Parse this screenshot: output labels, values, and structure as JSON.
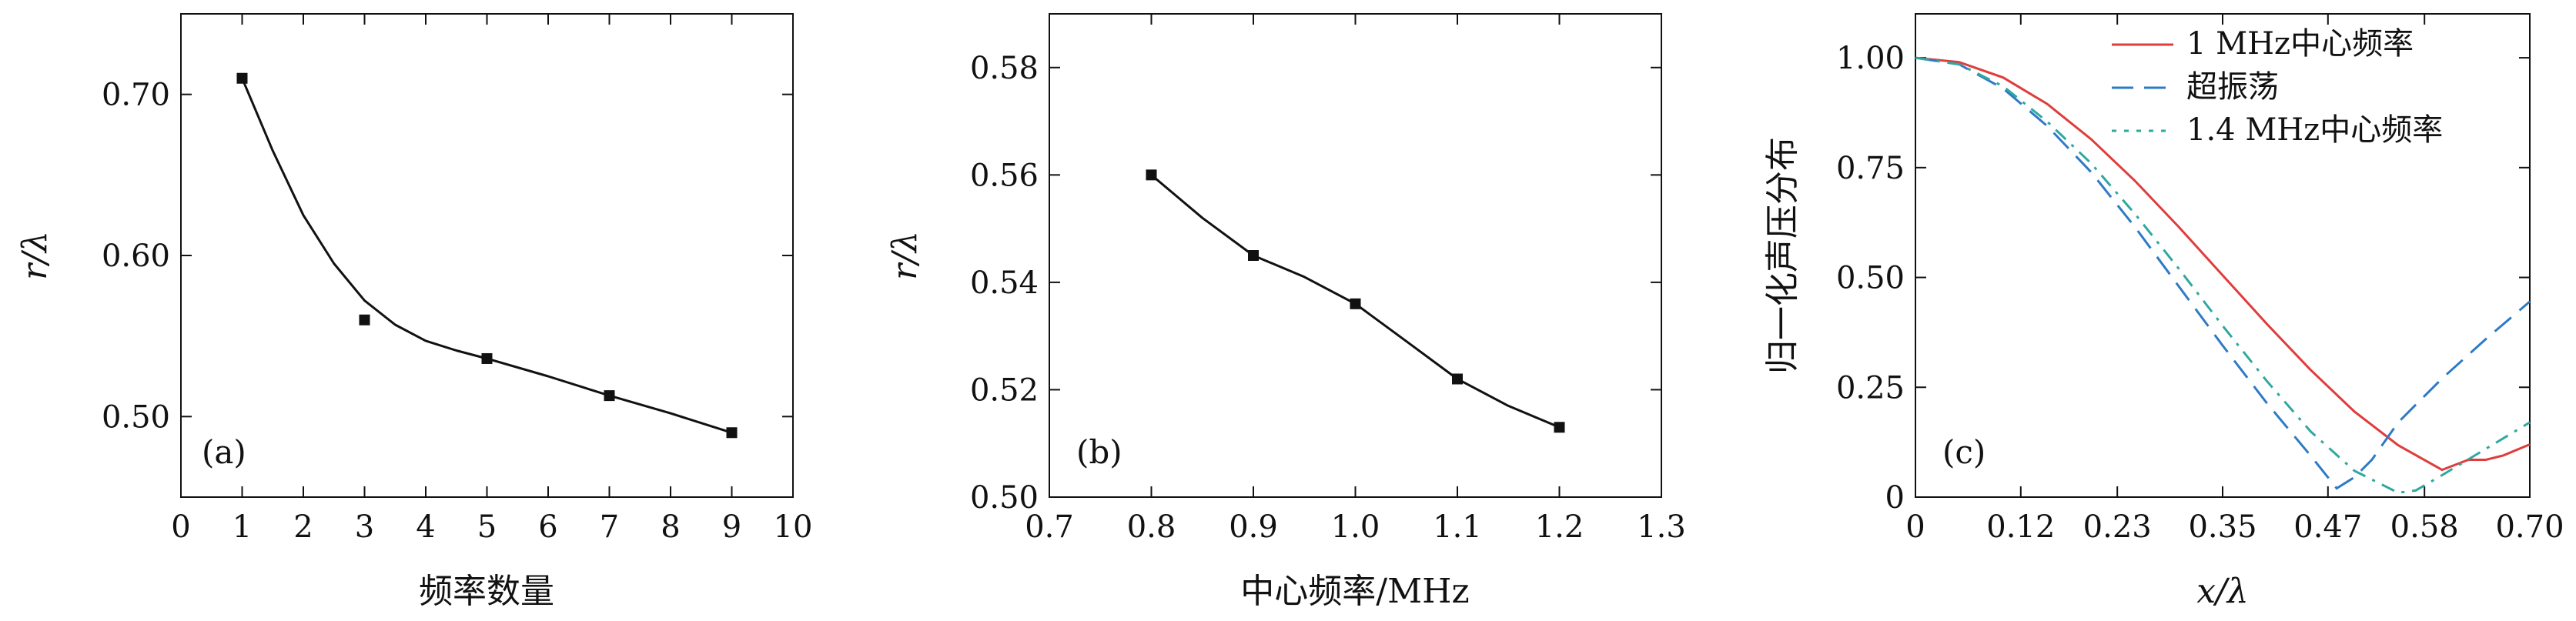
{
  "chart_data": [
    {
      "type": "scatter",
      "panel_label": "(a)",
      "xlabel": "频率数量",
      "ylabel": "r/λ",
      "xlim": [
        0,
        10
      ],
      "ylim": [
        0.45,
        0.75
      ],
      "x_ticks": [
        "0",
        "1",
        "2",
        "3",
        "4",
        "5",
        "6",
        "7",
        "8",
        "9",
        "10"
      ],
      "y_ticks": [
        "0.50",
        "0.60",
        "0.70"
      ],
      "points": [
        {
          "x": 1,
          "y": 0.71
        },
        {
          "x": 3,
          "y": 0.56
        },
        {
          "x": 5,
          "y": 0.536
        },
        {
          "x": 7,
          "y": 0.513
        },
        {
          "x": 9,
          "y": 0.49
        }
      ],
      "fit_curve": [
        {
          "x": 1.0,
          "y": 0.71
        },
        {
          "x": 1.5,
          "y": 0.665
        },
        {
          "x": 2.0,
          "y": 0.625
        },
        {
          "x": 2.5,
          "y": 0.595
        },
        {
          "x": 3.0,
          "y": 0.572
        },
        {
          "x": 3.5,
          "y": 0.557
        },
        {
          "x": 4.0,
          "y": 0.547
        },
        {
          "x": 4.5,
          "y": 0.541
        },
        {
          "x": 5.0,
          "y": 0.536
        },
        {
          "x": 6.0,
          "y": 0.525
        },
        {
          "x": 7.0,
          "y": 0.513
        },
        {
          "x": 8.0,
          "y": 0.502
        },
        {
          "x": 9.0,
          "y": 0.49
        }
      ]
    },
    {
      "type": "scatter",
      "panel_label": "(b)",
      "xlabel": "中心频率/MHz",
      "ylabel": "r/λ",
      "xlim": [
        0.7,
        1.3
      ],
      "ylim": [
        0.5,
        0.59
      ],
      "x_ticks": [
        "0.7",
        "0.8",
        "0.9",
        "1.0",
        "1.1",
        "1.2",
        "1.3"
      ],
      "y_ticks": [
        "0.50",
        "0.52",
        "0.54",
        "0.56",
        "0.58"
      ],
      "points": [
        {
          "x": 0.8,
          "y": 0.56
        },
        {
          "x": 0.9,
          "y": 0.545
        },
        {
          "x": 1.0,
          "y": 0.536
        },
        {
          "x": 1.1,
          "y": 0.522
        },
        {
          "x": 1.2,
          "y": 0.513
        }
      ],
      "fit_curve": [
        {
          "x": 0.8,
          "y": 0.56
        },
        {
          "x": 0.85,
          "y": 0.552
        },
        {
          "x": 0.9,
          "y": 0.545
        },
        {
          "x": 0.95,
          "y": 0.541
        },
        {
          "x": 1.0,
          "y": 0.536
        },
        {
          "x": 1.05,
          "y": 0.529
        },
        {
          "x": 1.1,
          "y": 0.522
        },
        {
          "x": 1.15,
          "y": 0.517
        },
        {
          "x": 1.2,
          "y": 0.513
        }
      ]
    },
    {
      "type": "line",
      "panel_label": "(c)",
      "xlabel": "x/λ",
      "ylabel": "归一化声压分布",
      "xlim": [
        0,
        0.7
      ],
      "ylim": [
        0,
        1.1
      ],
      "x_ticks": [
        "0",
        "0.12",
        "0.23",
        "0.35",
        "0.47",
        "0.58",
        "0.70"
      ],
      "y_ticks": [
        "0",
        "0.25",
        "0.50",
        "0.75",
        "1.00"
      ],
      "series": [
        {
          "name": "1 MHz中心频率",
          "color": "#e03c3c",
          "style": "solid",
          "x": [
            0,
            0.05,
            0.1,
            0.15,
            0.2,
            0.25,
            0.3,
            0.35,
            0.4,
            0.45,
            0.5,
            0.55,
            0.6,
            0.63,
            0.65,
            0.67,
            0.7
          ],
          "y": [
            1.0,
            0.99,
            0.955,
            0.895,
            0.815,
            0.72,
            0.615,
            0.505,
            0.395,
            0.29,
            0.195,
            0.118,
            0.062,
            0.085,
            0.085,
            0.095,
            0.12
          ]
        },
        {
          "name": "超振荡",
          "color": "#2e7ac6",
          "style": "dash",
          "x": [
            0,
            0.05,
            0.1,
            0.15,
            0.2,
            0.25,
            0.3,
            0.35,
            0.4,
            0.45,
            0.48,
            0.5,
            0.52,
            0.55,
            0.6,
            0.65,
            0.7
          ],
          "y": [
            1.0,
            0.985,
            0.93,
            0.845,
            0.74,
            0.615,
            0.48,
            0.345,
            0.215,
            0.095,
            0.02,
            0.045,
            0.085,
            0.17,
            0.27,
            0.36,
            0.445
          ]
        },
        {
          "name": "1.4 MHz中心频率",
          "color": "#2fa8a0",
          "style": "dashdot",
          "x": [
            0,
            0.05,
            0.1,
            0.15,
            0.2,
            0.25,
            0.3,
            0.35,
            0.4,
            0.45,
            0.5,
            0.55,
            0.57,
            0.6,
            0.65,
            0.7
          ],
          "y": [
            1.0,
            0.985,
            0.935,
            0.855,
            0.76,
            0.645,
            0.52,
            0.39,
            0.265,
            0.15,
            0.06,
            0.01,
            0.015,
            0.05,
            0.11,
            0.17
          ]
        }
      ],
      "legend": "top-right"
    }
  ]
}
